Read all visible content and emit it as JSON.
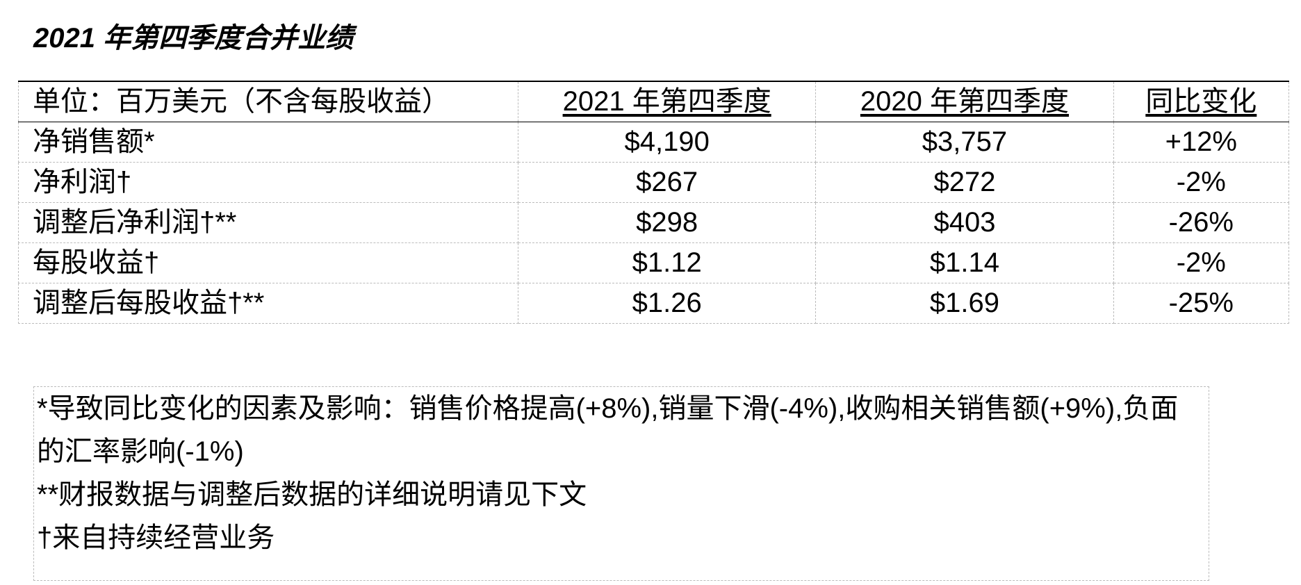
{
  "title": "2021 年第四季度合并业绩",
  "table": {
    "header": [
      "单位：百万美元（不含每股收益）",
      "2021 年第四季度",
      "2020 年第四季度",
      "同比变化"
    ],
    "rows": [
      [
        "净销售额*",
        "$4,190",
        "$3,757",
        "+12%"
      ],
      [
        "净利润†",
        "$267",
        "$272",
        "-2%"
      ],
      [
        "调整后净利润†**",
        "$298",
        "$403",
        "-26%"
      ],
      [
        "每股收益†",
        "$1.12",
        "$1.14",
        "-2%"
      ],
      [
        "调整后每股收益†**",
        "$1.26",
        "$1.69",
        "-25%"
      ]
    ]
  },
  "notes": [
    "*导致同比变化的因素及影响：销售价格提高(+8%),销量下滑(-4%),收购相关销售额(+9%),负面的汇率影响(-1%)",
    "**财报数据与调整后数据的详细说明请见下文",
    "†来自持续经营业务"
  ]
}
